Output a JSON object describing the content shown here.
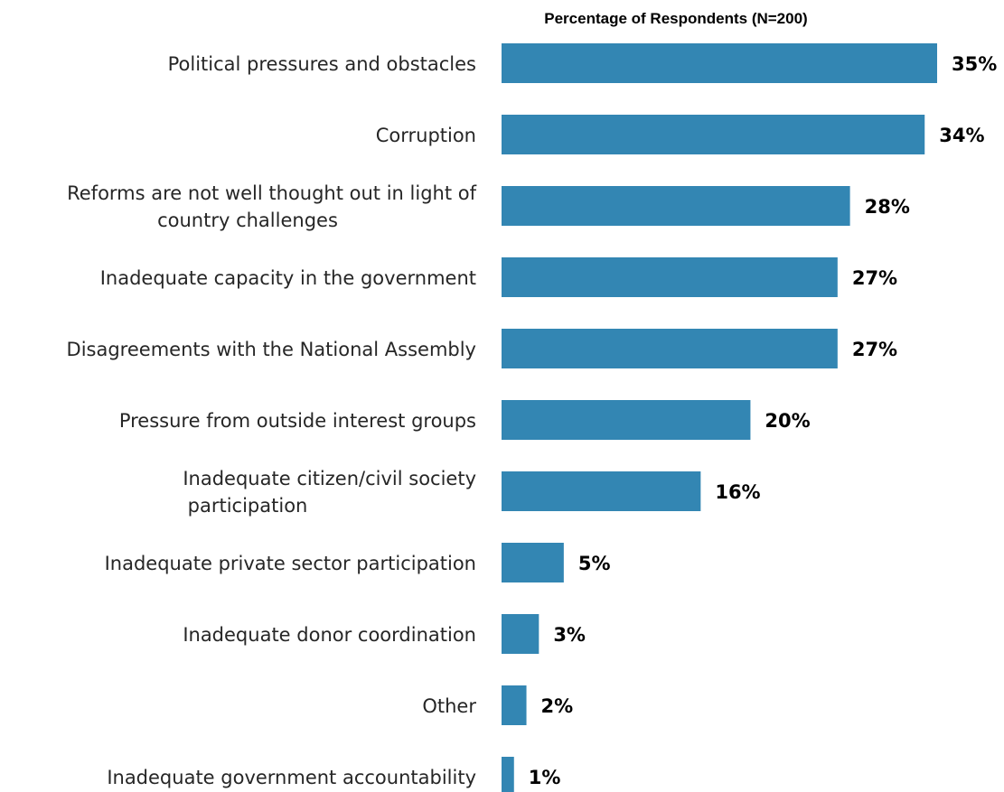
{
  "chart_data": {
    "type": "bar",
    "orientation": "horizontal",
    "title": "Percentage of Respondents (N=200)",
    "categories": [
      "Political pressures and obstacles",
      "Corruption",
      "Reforms are not well thought out in light of country challenges",
      "Inadequate capacity in the government",
      "Disagreements with the National Assembly",
      "Pressure from outside interest groups",
      "Inadequate citizen/civil society participation",
      "Inadequate private sector participation",
      "Inadequate donor coordination",
      "Other",
      "Inadequate government accountability"
    ],
    "values": [
      35,
      34,
      28,
      27,
      27,
      20,
      16,
      5,
      3,
      2,
      1
    ],
    "value_labels": [
      "35%",
      "34%",
      "28%",
      "27%",
      "27%",
      "20%",
      "16%",
      "5%",
      "3%",
      "2%",
      "1%"
    ],
    "xlim": [
      0,
      35
    ],
    "bar_color": "#3386b3",
    "grid": false,
    "legend": "none"
  }
}
